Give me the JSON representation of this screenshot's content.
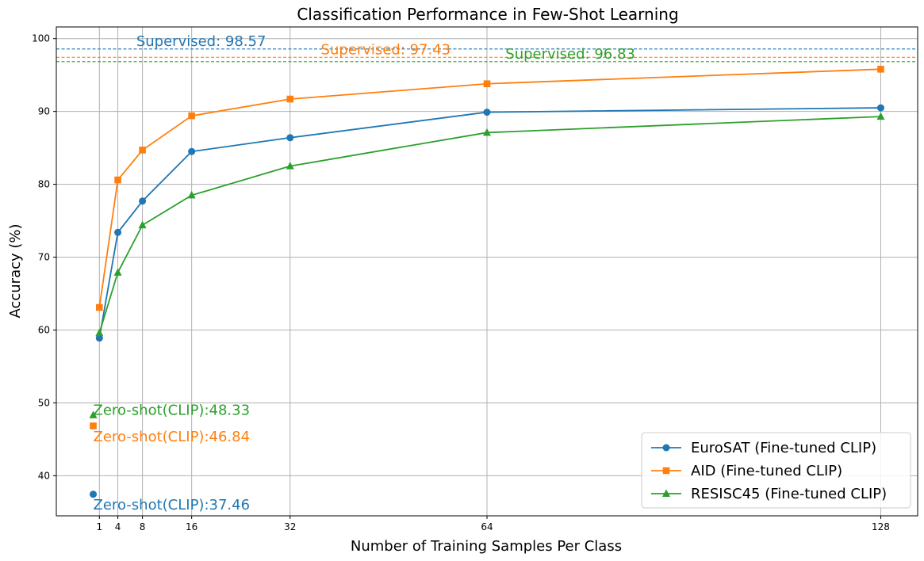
{
  "chart_data": {
    "type": "line",
    "title": "Classification Performance in Few-Shot Learning",
    "xlabel": "Number of Training Samples Per Class",
    "ylabel": "Accuracy (%)",
    "x": [
      1,
      4,
      8,
      16,
      32,
      64,
      128
    ],
    "x_ticks": [
      "1",
      "4",
      "8",
      "16",
      "32",
      "64",
      "128"
    ],
    "xlim": [
      -6,
      134
    ],
    "y_ticks": [
      "40",
      "50",
      "60",
      "70",
      "80",
      "90",
      "100"
    ],
    "ylim": [
      34.5,
      101.6
    ],
    "grid": true,
    "legend_position": "bottom-right",
    "series": [
      {
        "name": "EuroSAT (Fine-tuned CLIP)",
        "color": "#1f77b4",
        "marker": "circle",
        "values": [
          58.9,
          73.4,
          77.7,
          84.5,
          86.4,
          89.9,
          90.5
        ]
      },
      {
        "name": "AID (Fine-tuned CLIP)",
        "color": "#ff7f0e",
        "marker": "square",
        "values": [
          63.1,
          80.6,
          84.7,
          89.4,
          91.7,
          93.8,
          95.8
        ]
      },
      {
        "name": "RESISC45 (Fine-tuned CLIP)",
        "color": "#2ca02c",
        "marker": "triangle",
        "values": [
          59.6,
          67.9,
          74.4,
          78.5,
          82.5,
          87.1,
          89.3
        ]
      }
    ],
    "supervised": [
      {
        "value": 98.57,
        "label": "Supervised: 98.57",
        "color": "#1f77b4",
        "label_x": 7
      },
      {
        "value": 97.43,
        "label": "Supervised: 97.43",
        "color": "#ff7f0e",
        "label_x": 37
      },
      {
        "value": 96.83,
        "label": "Supervised: 96.83",
        "color": "#2ca02c",
        "label_x": 67
      }
    ],
    "zero_shot": [
      {
        "x": 0,
        "value": 37.46,
        "label": "Zero-shot(CLIP):37.46",
        "color": "#1f77b4",
        "marker": "circle",
        "label_y": 36.0
      },
      {
        "x": 0,
        "value": 46.84,
        "label": "Zero-shot(CLIP):46.84",
        "color": "#ff7f0e",
        "marker": "square",
        "label_y": 45.4
      },
      {
        "x": 0,
        "value": 48.33,
        "label": "Zero-shot(CLIP):48.33",
        "color": "#2ca02c",
        "marker": "triangle",
        "label_y": 49.0
      }
    ]
  }
}
